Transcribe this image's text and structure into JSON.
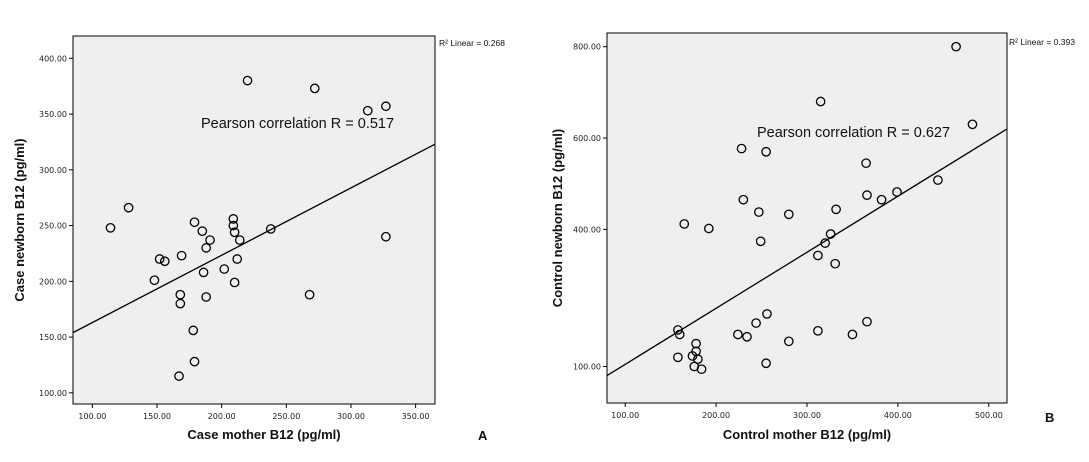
{
  "chart_data": [
    {
      "type": "scatter",
      "panel_label": "A",
      "xlabel": "Case mother B12 (pg/ml)",
      "ylabel": "Case newborn B12 (pg/ml)",
      "xlim": [
        85,
        365
      ],
      "ylim": [
        90,
        420
      ],
      "xticks": [
        100,
        150,
        200,
        250,
        300,
        350
      ],
      "yticks": [
        100,
        150,
        200,
        250,
        300,
        350,
        400
      ],
      "xtick_labels": [
        "100.00",
        "150.00",
        "200.00",
        "250.00",
        "300.00",
        "350.00"
      ],
      "ytick_labels": [
        "100.00",
        "150.00",
        "200.00",
        "250.00",
        "300.00",
        "350.00",
        "400.00"
      ],
      "r2_label": "R² Linear = 0.268",
      "annotation": "Pearson correlation R = 0.517",
      "fit_line": {
        "x1": 85,
        "y1": 154,
        "x2": 365,
        "y2": 323
      },
      "points": [
        {
          "x": 114,
          "y": 248
        },
        {
          "x": 128,
          "y": 266
        },
        {
          "x": 148,
          "y": 201
        },
        {
          "x": 152,
          "y": 220
        },
        {
          "x": 156,
          "y": 218
        },
        {
          "x": 167,
          "y": 115
        },
        {
          "x": 168,
          "y": 188
        },
        {
          "x": 168,
          "y": 180
        },
        {
          "x": 169,
          "y": 223
        },
        {
          "x": 178,
          "y": 156
        },
        {
          "x": 179,
          "y": 128
        },
        {
          "x": 179,
          "y": 253
        },
        {
          "x": 185,
          "y": 245
        },
        {
          "x": 186,
          "y": 208
        },
        {
          "x": 188,
          "y": 186
        },
        {
          "x": 188,
          "y": 230
        },
        {
          "x": 191,
          "y": 237
        },
        {
          "x": 202,
          "y": 211
        },
        {
          "x": 209,
          "y": 256
        },
        {
          "x": 209,
          "y": 250
        },
        {
          "x": 210,
          "y": 244
        },
        {
          "x": 210,
          "y": 199
        },
        {
          "x": 212,
          "y": 220
        },
        {
          "x": 214,
          "y": 237
        },
        {
          "x": 220,
          "y": 380
        },
        {
          "x": 238,
          "y": 247
        },
        {
          "x": 268,
          "y": 188
        },
        {
          "x": 272,
          "y": 373
        },
        {
          "x": 313,
          "y": 353
        },
        {
          "x": 327,
          "y": 357
        },
        {
          "x": 327,
          "y": 240
        }
      ]
    },
    {
      "type": "scatter",
      "panel_label": "B",
      "xlabel": "Control mother B12 (pg/ml)",
      "ylabel": "Control newborn B12 (pg/ml)",
      "xlim": [
        80,
        520
      ],
      "ylim": [
        20,
        830
      ],
      "xticks": [
        100,
        200,
        300,
        400,
        500
      ],
      "yticks": [
        100,
        400,
        600,
        800
      ],
      "xtick_labels": [
        "100.00",
        "200.00",
        "300.00",
        "400.00",
        "500.00"
      ],
      "ytick_labels": [
        "100.00",
        "400.00",
        "600.00",
        "800.00"
      ],
      "r2_label": "R² Linear = 0.393",
      "annotation": "Pearson correlation R = 0.627",
      "fit_line": {
        "x1": 80,
        "y1": 80,
        "x2": 520,
        "y2": 620
      },
      "points": [
        {
          "x": 158,
          "y": 120
        },
        {
          "x": 158,
          "y": 180
        },
        {
          "x": 160,
          "y": 170
        },
        {
          "x": 165,
          "y": 412
        },
        {
          "x": 174,
          "y": 123
        },
        {
          "x": 176,
          "y": 100
        },
        {
          "x": 178,
          "y": 150
        },
        {
          "x": 178,
          "y": 133
        },
        {
          "x": 180,
          "y": 116
        },
        {
          "x": 184,
          "y": 94
        },
        {
          "x": 192,
          "y": 402
        },
        {
          "x": 224,
          "y": 170
        },
        {
          "x": 228,
          "y": 577
        },
        {
          "x": 230,
          "y": 465
        },
        {
          "x": 234,
          "y": 165
        },
        {
          "x": 244,
          "y": 195
        },
        {
          "x": 247,
          "y": 438
        },
        {
          "x": 249,
          "y": 374
        },
        {
          "x": 255,
          "y": 570
        },
        {
          "x": 255,
          "y": 107
        },
        {
          "x": 256,
          "y": 215
        },
        {
          "x": 280,
          "y": 433
        },
        {
          "x": 280,
          "y": 155
        },
        {
          "x": 312,
          "y": 178
        },
        {
          "x": 312,
          "y": 343
        },
        {
          "x": 315,
          "y": 680
        },
        {
          "x": 320,
          "y": 370
        },
        {
          "x": 326,
          "y": 390
        },
        {
          "x": 331,
          "y": 325
        },
        {
          "x": 332,
          "y": 444
        },
        {
          "x": 350,
          "y": 170
        },
        {
          "x": 365,
          "y": 545
        },
        {
          "x": 366,
          "y": 475
        },
        {
          "x": 366,
          "y": 198
        },
        {
          "x": 382,
          "y": 465
        },
        {
          "x": 399,
          "y": 482
        },
        {
          "x": 444,
          "y": 508
        },
        {
          "x": 464,
          "y": 800
        },
        {
          "x": 482,
          "y": 630
        }
      ]
    }
  ]
}
